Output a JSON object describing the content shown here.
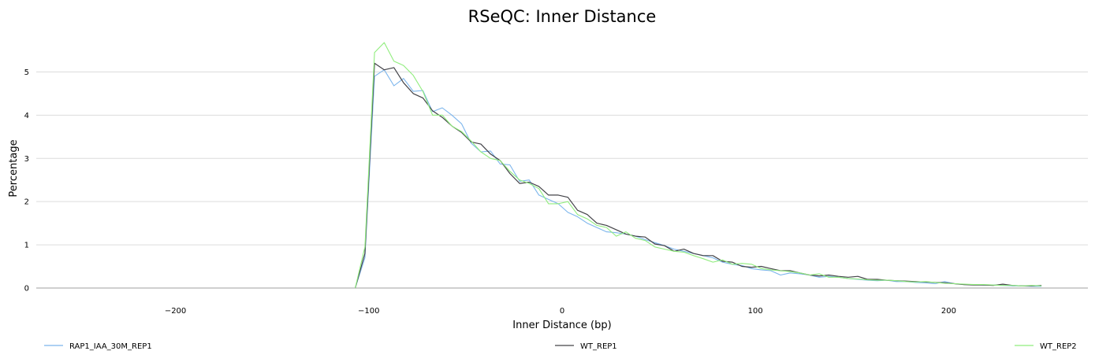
{
  "chart_data": {
    "type": "line",
    "title": "RSeQC: Inner Distance",
    "xlabel": "Inner Distance (bp)",
    "ylabel": "Percentage",
    "xlim": [
      -272,
      272
    ],
    "ylim": [
      0,
      5.9
    ],
    "xticks": [
      -200,
      -100,
      0,
      100,
      200
    ],
    "xtick_labels": [
      "−200",
      "−100",
      "0",
      "100",
      "200"
    ],
    "yticks": [
      0,
      1,
      2,
      3,
      4,
      5
    ],
    "ytick_labels": [
      "0",
      "1",
      "2",
      "3",
      "4",
      "5"
    ],
    "grid": "horizontal",
    "legend_position": "bottom",
    "series": [
      {
        "name": "RAP1_IAA_30M_REP1",
        "color": "#7cb5ec",
        "x": [
          -107,
          -102,
          -97,
          -92,
          -87,
          -82,
          -77,
          -72,
          -67,
          -62,
          -57,
          -52,
          -47,
          -42,
          -37,
          -32,
          -27,
          -22,
          -17,
          -12,
          -7,
          -2,
          3,
          8,
          13,
          18,
          23,
          28,
          33,
          38,
          43,
          48,
          53,
          58,
          63,
          68,
          73,
          78,
          83,
          88,
          93,
          98,
          103,
          108,
          113,
          118,
          123,
          128,
          133,
          138,
          143,
          148,
          153,
          158,
          163,
          168,
          173,
          178,
          183,
          188,
          193,
          198,
          203,
          208,
          213,
          218,
          223,
          228,
          233,
          238,
          243,
          248
        ],
        "values": [
          0.0,
          0.7,
          4.9,
          5.05,
          4.68,
          4.85,
          4.55,
          4.57,
          4.08,
          4.17,
          4.0,
          3.8,
          3.35,
          3.15,
          3.17,
          2.87,
          2.85,
          2.47,
          2.5,
          2.15,
          2.05,
          1.95,
          1.75,
          1.65,
          1.5,
          1.4,
          1.3,
          1.28,
          1.25,
          1.2,
          1.12,
          1.05,
          0.98,
          0.9,
          0.85,
          0.8,
          0.75,
          0.7,
          0.6,
          0.55,
          0.52,
          0.45,
          0.42,
          0.4,
          0.3,
          0.35,
          0.33,
          0.3,
          0.25,
          0.27,
          0.25,
          0.22,
          0.2,
          0.18,
          0.17,
          0.18,
          0.15,
          0.15,
          0.13,
          0.12,
          0.1,
          0.15,
          0.1,
          0.08,
          0.08,
          0.07,
          0.07,
          0.06,
          0.05,
          0.05,
          0.04,
          0.04
        ]
      },
      {
        "name": "WT_REP1",
        "color": "#434348",
        "x": [
          -107,
          -102,
          -97,
          -92,
          -87,
          -82,
          -77,
          -72,
          -67,
          -62,
          -57,
          -52,
          -47,
          -42,
          -37,
          -32,
          -27,
          -22,
          -17,
          -12,
          -7,
          -2,
          3,
          8,
          13,
          18,
          23,
          28,
          33,
          38,
          43,
          48,
          53,
          58,
          63,
          68,
          73,
          78,
          83,
          88,
          93,
          98,
          103,
          108,
          113,
          118,
          123,
          128,
          133,
          138,
          143,
          148,
          153,
          158,
          163,
          168,
          173,
          178,
          183,
          188,
          193,
          198,
          203,
          208,
          213,
          218,
          223,
          228,
          233,
          238,
          243,
          248
        ],
        "values": [
          0.0,
          0.8,
          5.2,
          5.05,
          5.1,
          4.75,
          4.5,
          4.4,
          4.1,
          3.95,
          3.75,
          3.6,
          3.38,
          3.33,
          3.1,
          2.95,
          2.65,
          2.42,
          2.45,
          2.35,
          2.15,
          2.15,
          2.1,
          1.8,
          1.7,
          1.5,
          1.45,
          1.35,
          1.25,
          1.2,
          1.18,
          1.02,
          0.98,
          0.85,
          0.9,
          0.8,
          0.75,
          0.75,
          0.62,
          0.6,
          0.5,
          0.48,
          0.5,
          0.45,
          0.4,
          0.4,
          0.35,
          0.3,
          0.28,
          0.3,
          0.27,
          0.25,
          0.27,
          0.2,
          0.2,
          0.18,
          0.17,
          0.16,
          0.15,
          0.14,
          0.13,
          0.12,
          0.1,
          0.08,
          0.07,
          0.07,
          0.06,
          0.09,
          0.06,
          0.05,
          0.05,
          0.06
        ]
      },
      {
        "name": "WT_REP2",
        "color": "#90ed7d",
        "x": [
          -107,
          -102,
          -97,
          -92,
          -87,
          -82,
          -77,
          -72,
          -67,
          -62,
          -57,
          -52,
          -47,
          -42,
          -37,
          -32,
          -27,
          -22,
          -17,
          -12,
          -7,
          -2,
          3,
          8,
          13,
          18,
          23,
          28,
          33,
          38,
          43,
          48,
          53,
          58,
          63,
          68,
          73,
          78,
          83,
          88,
          93,
          98,
          103,
          108,
          113,
          118,
          123,
          128,
          133,
          138,
          143,
          148,
          153,
          158,
          163,
          168,
          173,
          178,
          183,
          188,
          193,
          198,
          203,
          208,
          213,
          218,
          223,
          228,
          233,
          238,
          243,
          248
        ],
        "values": [
          0.0,
          0.95,
          5.45,
          5.68,
          5.25,
          5.15,
          4.92,
          4.55,
          4.0,
          4.0,
          3.75,
          3.62,
          3.4,
          3.15,
          3.0,
          2.95,
          2.7,
          2.5,
          2.42,
          2.3,
          1.95,
          1.95,
          2.0,
          1.7,
          1.6,
          1.45,
          1.4,
          1.2,
          1.3,
          1.15,
          1.1,
          0.95,
          0.9,
          0.85,
          0.83,
          0.75,
          0.68,
          0.6,
          0.65,
          0.55,
          0.57,
          0.55,
          0.45,
          0.42,
          0.4,
          0.38,
          0.35,
          0.3,
          0.33,
          0.25,
          0.25,
          0.22,
          0.21,
          0.19,
          0.18,
          0.18,
          0.17,
          0.15,
          0.14,
          0.15,
          0.13,
          0.11,
          0.1,
          0.09,
          0.08,
          0.08,
          0.07,
          0.06,
          0.06,
          0.05,
          0.06,
          0.05
        ]
      }
    ]
  }
}
